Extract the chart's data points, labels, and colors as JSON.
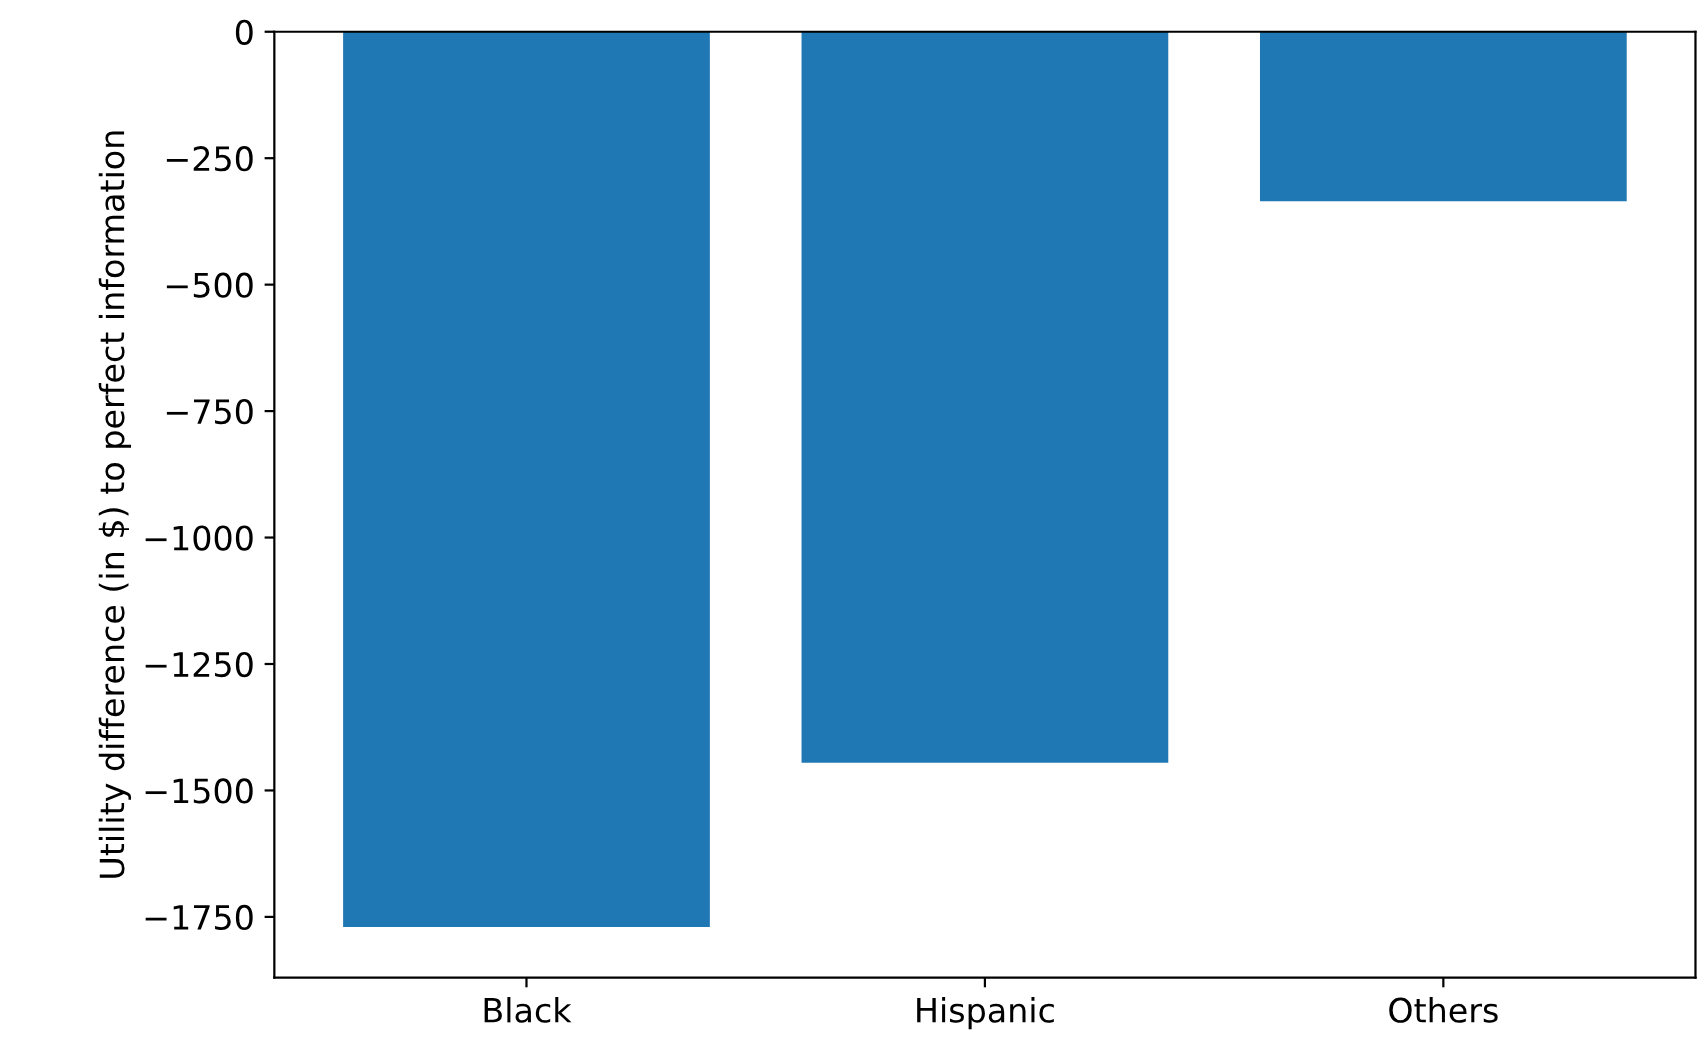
{
  "chart_data": {
    "type": "bar",
    "ylabel": "Utility difference (in $) to perfect information",
    "categories": [
      "Black",
      "Hispanic",
      "Others"
    ],
    "values": [
      -1770,
      -1445,
      -335
    ],
    "color": "#1f77b4",
    "ylim": [
      -1870,
      0
    ],
    "yticks": [
      {
        "value": -1750,
        "label": "−1750"
      },
      {
        "value": -1500,
        "label": "−1500"
      },
      {
        "value": -1250,
        "label": "−1250"
      },
      {
        "value": -1000,
        "label": "−1000"
      },
      {
        "value": -750,
        "label": "−750"
      },
      {
        "value": -500,
        "label": "−500"
      },
      {
        "value": -250,
        "label": "−250"
      },
      0
    ]
  }
}
